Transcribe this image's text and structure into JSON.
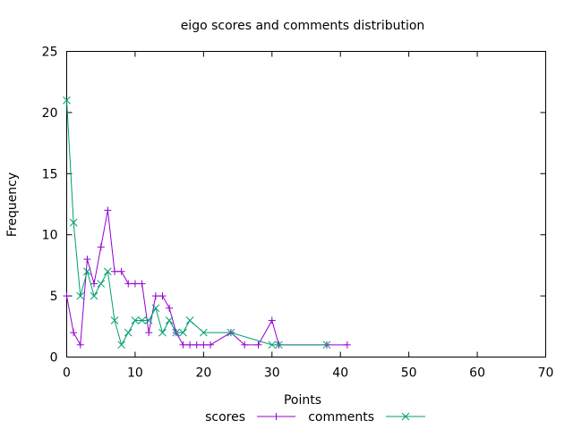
{
  "chart_data": {
    "type": "line",
    "title": "eigo scores and comments distribution",
    "xlabel": "Points",
    "ylabel": "Frequency",
    "xlim": [
      0,
      70
    ],
    "ylim": [
      0,
      25
    ],
    "x_ticks": [
      0,
      10,
      20,
      30,
      40,
      50,
      60,
      70
    ],
    "y_ticks": [
      0,
      5,
      10,
      15,
      20,
      25
    ],
    "grid": false,
    "legend_position": "bottom-center",
    "series": [
      {
        "name": "scores",
        "color": "#9400d3",
        "marker": "plus",
        "points": [
          [
            0,
            5
          ],
          [
            1,
            2
          ],
          [
            2,
            1
          ],
          [
            3,
            8
          ],
          [
            4,
            6
          ],
          [
            5,
            9
          ],
          [
            6,
            12
          ],
          [
            7,
            7
          ],
          [
            8,
            7
          ],
          [
            9,
            6
          ],
          [
            10,
            6
          ],
          [
            11,
            6
          ],
          [
            12,
            2
          ],
          [
            13,
            5
          ],
          [
            14,
            5
          ],
          [
            15,
            4
          ],
          [
            16,
            2
          ],
          [
            17,
            1
          ],
          [
            18,
            1
          ],
          [
            19,
            1
          ],
          [
            20,
            1
          ],
          [
            21,
            1
          ],
          [
            24,
            2
          ],
          [
            26,
            1
          ],
          [
            28,
            1
          ],
          [
            30,
            3
          ],
          [
            31,
            1
          ],
          [
            38,
            1
          ],
          [
            41,
            1
          ]
        ]
      },
      {
        "name": "comments",
        "color": "#009e73",
        "marker": "cross",
        "points": [
          [
            0,
            21
          ],
          [
            1,
            11
          ],
          [
            2,
            5
          ],
          [
            3,
            7
          ],
          [
            4,
            5
          ],
          [
            5,
            6
          ],
          [
            6,
            7
          ],
          [
            7,
            3
          ],
          [
            8,
            1
          ],
          [
            9,
            2
          ],
          [
            10,
            3
          ],
          [
            11,
            3
          ],
          [
            12,
            3
          ],
          [
            13,
            4
          ],
          [
            14,
            2
          ],
          [
            15,
            3
          ],
          [
            16,
            2
          ],
          [
            17,
            2
          ],
          [
            18,
            3
          ],
          [
            20,
            2
          ],
          [
            24,
            2
          ],
          [
            30,
            1
          ],
          [
            31,
            1
          ],
          [
            38,
            1
          ]
        ]
      }
    ]
  }
}
